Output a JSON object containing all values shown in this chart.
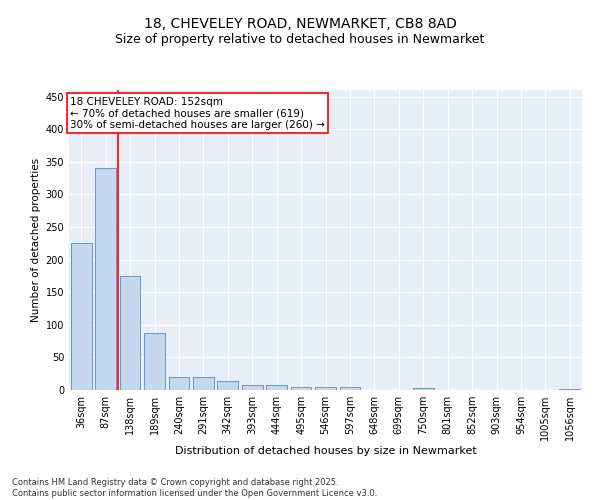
{
  "title_line1": "18, CHEVELEY ROAD, NEWMARKET, CB8 8AD",
  "title_line2": "Size of property relative to detached houses in Newmarket",
  "xlabel": "Distribution of detached houses by size in Newmarket",
  "ylabel": "Number of detached properties",
  "categories": [
    "36sqm",
    "87sqm",
    "138sqm",
    "189sqm",
    "240sqm",
    "291sqm",
    "342sqm",
    "393sqm",
    "444sqm",
    "495sqm",
    "546sqm",
    "597sqm",
    "648sqm",
    "699sqm",
    "750sqm",
    "801sqm",
    "852sqm",
    "903sqm",
    "954sqm",
    "1005sqm",
    "1056sqm"
  ],
  "values": [
    225,
    340,
    175,
    88,
    20,
    20,
    14,
    8,
    8,
    5,
    5,
    5,
    0,
    0,
    3,
    0,
    0,
    0,
    0,
    0,
    2
  ],
  "bar_color": "#c5d8f0",
  "bar_edge_color": "#5a8bbf",
  "red_line_index": 2,
  "annotation_line1": "18 CHEVELEY ROAD: 152sqm",
  "annotation_line2": "← 70% of detached houses are smaller (619)",
  "annotation_line3": "30% of semi-detached houses are larger (260) →",
  "annotation_box_color": "white",
  "annotation_border_color": "red",
  "ylim": [
    0,
    460
  ],
  "yticks": [
    0,
    50,
    100,
    150,
    200,
    250,
    300,
    350,
    400,
    450
  ],
  "footer_text": "Contains HM Land Registry data © Crown copyright and database right 2025.\nContains public sector information licensed under the Open Government Licence v3.0.",
  "background_color": "#e8eef8",
  "grid_color": "white",
  "title_fontsize": 10,
  "subtitle_fontsize": 9,
  "tick_fontsize": 7,
  "xlabel_fontsize": 8,
  "ylabel_fontsize": 7.5,
  "annotation_fontsize": 7.5,
  "footer_fontsize": 6
}
